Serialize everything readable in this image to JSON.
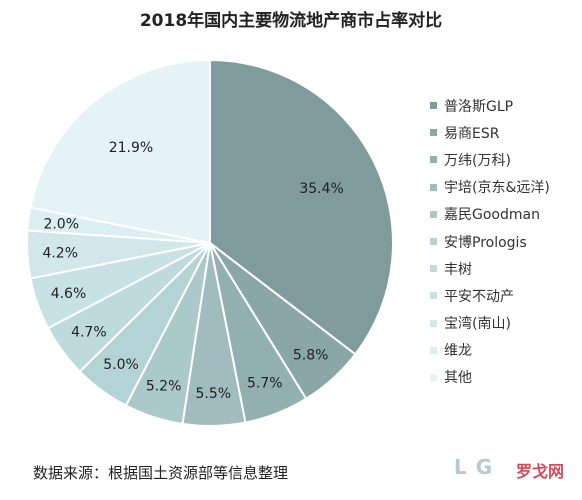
{
  "chart_data": {
    "type": "pie",
    "title": "2018年国内主要物流地产商市占率对比",
    "categories": [
      "普洛斯GLP",
      "易商ESR",
      "万纬(万科)",
      "宇培(京东&远洋)",
      "嘉民Goodman",
      "安博Prologis",
      "丰树",
      "平安不动产",
      "宝湾(南山)",
      "维龙",
      "其他"
    ],
    "values": [
      35.4,
      5.8,
      5.7,
      5.5,
      5.2,
      5.0,
      4.7,
      4.6,
      4.2,
      2.0,
      21.9
    ],
    "labels": [
      "35.4%",
      "5.8%",
      "5.7%",
      "5.5%",
      "5.2%",
      "5.0%",
      "4.7%",
      "4.6%",
      "4.2%",
      "2.0%",
      "21.9%"
    ],
    "colors": [
      "#7f9b9b",
      "#8aa6a7",
      "#93b0b1",
      "#a0bcbe",
      "#abc8cb",
      "#b4d3d7",
      "#bfdadd",
      "#c8e1e4",
      "#d2e7ea",
      "#dbeef0",
      "#e6f3f5"
    ],
    "legend_position": "right"
  },
  "source": "数据来源：根据国土资源部等信息整理",
  "watermark": {
    "logo": "L G",
    "brand": "罗戈网"
  }
}
